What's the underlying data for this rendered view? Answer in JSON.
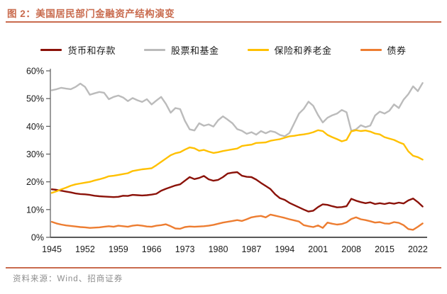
{
  "figure": {
    "title": "图 2：美国居民部门金融资产结构演变",
    "source": "资料来源：Wind、招商证券"
  },
  "colors": {
    "accent": "#C96B4E",
    "axis": "#595959",
    "tick_text": "#1a1a1a",
    "source_text": "#8C8C8C"
  },
  "chart_data": {
    "type": "line",
    "title": "美国居民部门金融资产结构演变",
    "xlabel": "",
    "ylabel": "",
    "grid": false,
    "legend_position": "top",
    "ylim": [
      0,
      60
    ],
    "y_ticks": [
      "0%",
      "10%",
      "20%",
      "30%",
      "40%",
      "50%",
      "60%"
    ],
    "x_ticks": [
      1945,
      1952,
      1959,
      1966,
      1973,
      1980,
      1987,
      1994,
      2001,
      2008,
      2015,
      2022
    ],
    "x": [
      1945,
      1946,
      1947,
      1948,
      1949,
      1950,
      1951,
      1952,
      1953,
      1954,
      1955,
      1956,
      1957,
      1958,
      1959,
      1960,
      1961,
      1962,
      1963,
      1964,
      1965,
      1966,
      1967,
      1968,
      1969,
      1970,
      1971,
      1972,
      1973,
      1974,
      1975,
      1976,
      1977,
      1978,
      1979,
      1980,
      1981,
      1982,
      1983,
      1984,
      1985,
      1986,
      1987,
      1988,
      1989,
      1990,
      1991,
      1992,
      1993,
      1994,
      1995,
      1996,
      1997,
      1998,
      1999,
      2000,
      2001,
      2002,
      2003,
      2004,
      2005,
      2006,
      2007,
      2008,
      2009,
      2010,
      2011,
      2012,
      2013,
      2014,
      2015,
      2016,
      2017,
      2018,
      2019,
      2020,
      2021,
      2022,
      2023
    ],
    "series": [
      {
        "key": "deposits",
        "name": "货币和存款",
        "color": "#8B1209",
        "values": [
          17.3,
          17.1,
          16.8,
          16.5,
          16.2,
          15.8,
          15.6,
          15.5,
          15.3,
          15.0,
          14.8,
          14.7,
          14.6,
          14.5,
          14.6,
          15.0,
          14.9,
          15.3,
          15.2,
          15.1,
          15.2,
          15.4,
          15.7,
          16.8,
          17.5,
          18.1,
          18.7,
          19.1,
          20.4,
          21.7,
          21.0,
          21.4,
          22.1,
          20.9,
          20.4,
          20.7,
          21.7,
          23.0,
          23.3,
          23.5,
          22.2,
          21.8,
          21.7,
          20.8,
          19.6,
          18.5,
          17.4,
          15.5,
          14.1,
          13.5,
          12.4,
          11.6,
          10.8,
          10.0,
          9.3,
          9.6,
          10.9,
          11.9,
          11.7,
          11.2,
          10.8,
          10.9,
          11.2,
          13.9,
          13.2,
          12.7,
          12.3,
          12.6,
          12.0,
          12.3,
          12.0,
          12.4,
          12.1,
          12.5,
          12.2,
          13.3,
          14.0,
          12.7,
          11.1
        ]
      },
      {
        "key": "stocks",
        "name": "股票和基金",
        "color": "#BBBBBB",
        "values": [
          53.0,
          53.4,
          53.9,
          53.6,
          53.4,
          54.2,
          55.4,
          54.2,
          51.4,
          51.9,
          52.4,
          52.1,
          49.8,
          50.6,
          51.1,
          50.4,
          49.1,
          50.2,
          49.4,
          48.8,
          49.8,
          47.9,
          49.3,
          50.6,
          48.1,
          44.9,
          46.6,
          46.2,
          42.0,
          38.9,
          38.5,
          41.1,
          40.2,
          40.7,
          39.9,
          42.2,
          43.6,
          42.4,
          41.1,
          39.0,
          38.4,
          37.3,
          37.9,
          37.0,
          38.3,
          37.5,
          38.3,
          37.9,
          36.9,
          36.4,
          37.6,
          41.1,
          44.6,
          46.3,
          48.9,
          47.4,
          44.1,
          41.4,
          43.1,
          44.0,
          44.6,
          45.9,
          45.1,
          38.4,
          38.9,
          40.4,
          39.7,
          40.3,
          43.9,
          45.3,
          44.6,
          45.6,
          47.9,
          46.6,
          49.6,
          51.6,
          54.4,
          52.7,
          55.6
        ]
      },
      {
        "key": "insurance",
        "name": "保险和养老金",
        "color": "#FFC000",
        "values": [
          16.0,
          16.6,
          17.3,
          17.9,
          18.6,
          19.1,
          19.4,
          19.7,
          20.0,
          20.5,
          20.9,
          21.4,
          22.0,
          22.2,
          22.5,
          22.8,
          23.1,
          23.9,
          24.2,
          24.5,
          24.7,
          24.9,
          26.0,
          27.2,
          28.4,
          29.6,
          30.3,
          30.7,
          31.6,
          32.4,
          32.1,
          31.2,
          31.5,
          30.9,
          30.4,
          30.7,
          31.1,
          31.4,
          31.7,
          32.0,
          32.9,
          33.2,
          33.4,
          34.0,
          34.1,
          34.2,
          34.8,
          35.1,
          35.4,
          35.9,
          36.4,
          36.6,
          36.9,
          37.1,
          37.4,
          37.9,
          38.6,
          38.3,
          36.9,
          36.1,
          35.4,
          34.6,
          35.1,
          38.2,
          38.6,
          38.3,
          38.5,
          38.1,
          37.4,
          37.1,
          36.1,
          35.6,
          35.1,
          34.3,
          33.6,
          31.0,
          29.4,
          28.9,
          28.0
        ]
      },
      {
        "key": "bonds",
        "name": "债券",
        "color": "#ED7D31",
        "values": [
          5.6,
          5.0,
          4.6,
          4.3,
          4.1,
          3.9,
          3.7,
          3.6,
          3.4,
          3.5,
          3.6,
          3.8,
          4.0,
          3.8,
          4.2,
          4.0,
          3.8,
          4.2,
          4.4,
          4.2,
          3.9,
          3.8,
          4.2,
          4.4,
          4.7,
          4.0,
          3.2,
          3.1,
          3.7,
          3.9,
          3.8,
          3.9,
          4.0,
          4.2,
          4.5,
          4.9,
          5.3,
          5.6,
          5.9,
          6.2,
          5.9,
          6.5,
          7.2,
          7.5,
          7.7,
          7.2,
          8.2,
          7.8,
          7.4,
          7.0,
          6.5,
          6.1,
          5.7,
          4.4,
          4.0,
          3.7,
          4.3,
          3.4,
          5.3,
          4.9,
          4.6,
          4.8,
          5.4,
          6.6,
          7.2,
          6.5,
          6.2,
          5.8,
          5.3,
          5.5,
          5.0,
          4.9,
          5.5,
          5.2,
          4.4,
          3.0,
          2.7,
          3.8,
          5.0
        ]
      }
    ]
  }
}
